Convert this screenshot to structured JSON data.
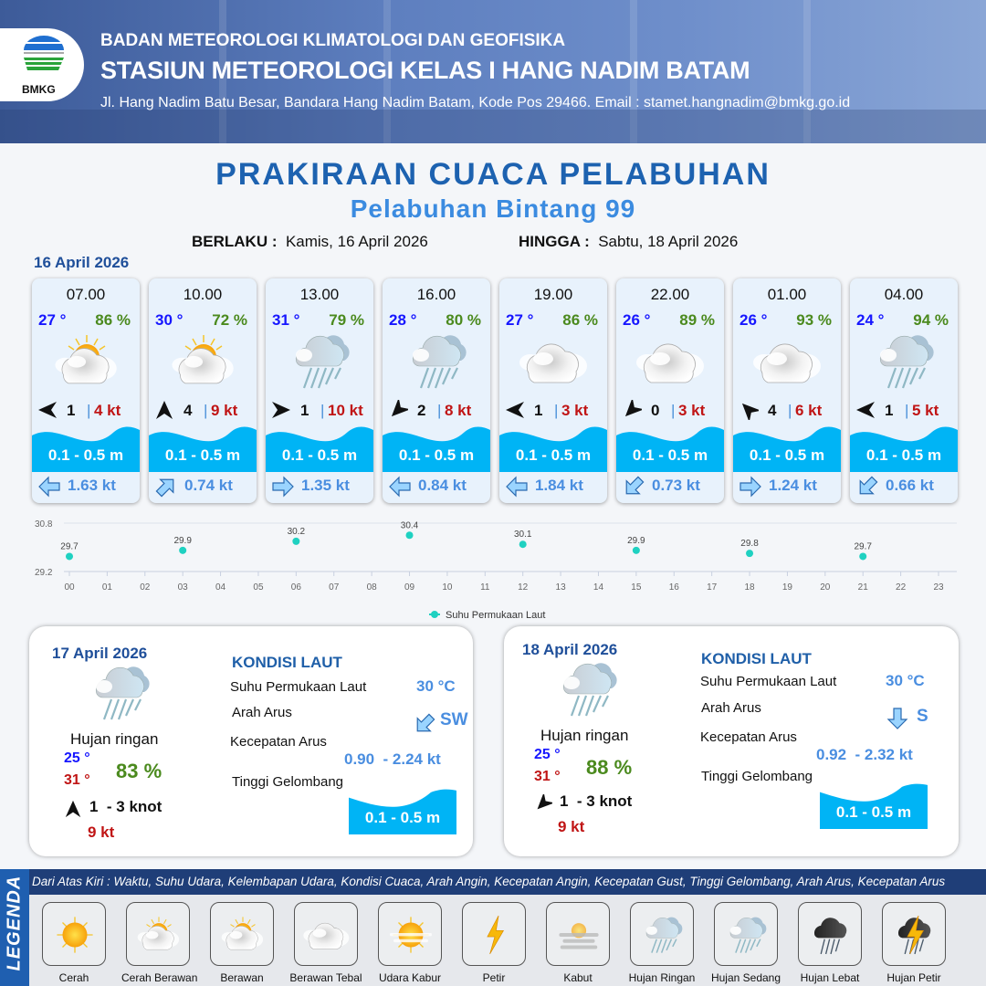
{
  "header": {
    "logo_text": "BMKG",
    "agency": "BADAN METEOROLOGI KLIMATOLOGI DAN GEOFISIKA",
    "station": "STASIUN METEOROLOGI KELAS I HANG NADIM BATAM",
    "address": "Jl. Hang Nadim Batu Besar, Bandara Hang Nadim Batam, Kode Pos 29466. Email : stamet.hangnadim@bmkg.go.id"
  },
  "title": "PRAKIRAAN CUACA PELABUHAN",
  "subtitle": "Pelabuhan Bintang 99",
  "validity": {
    "from_label": "BERLAKU :",
    "from": "Kamis, 16 April 2026",
    "to_label": "HINGGA :",
    "to": "Sabtu, 18 April 2026"
  },
  "day1": {
    "date": "16 April 2026",
    "forecasts": [
      {
        "time": "07.00",
        "temp": "27 °",
        "rh": "86 %",
        "weather": "cerah-berawan",
        "wind_dir_deg": 270,
        "wind_speed": "1",
        "gust": "4 kt",
        "wave": "0.1 - 0.5 m",
        "current_dir_deg": 270,
        "current_speed": "1.63 kt"
      },
      {
        "time": "10.00",
        "temp": "30 °",
        "rh": "72 %",
        "weather": "cerah-berawan",
        "wind_dir_deg": 0,
        "wind_speed": "4",
        "gust": "9 kt",
        "wave": "0.1 - 0.5 m",
        "current_dir_deg": 45,
        "current_speed": "0.74 kt"
      },
      {
        "time": "13.00",
        "temp": "31 °",
        "rh": "79 %",
        "weather": "hujan-ringan",
        "wind_dir_deg": 90,
        "wind_speed": "1",
        "gust": "10 kt",
        "wave": "0.1 - 0.5 m",
        "current_dir_deg": 90,
        "current_speed": "1.35 kt"
      },
      {
        "time": "16.00",
        "temp": "28 °",
        "rh": "80 %",
        "weather": "hujan-ringan",
        "wind_dir_deg": 225,
        "wind_speed": "2",
        "gust": "8 kt",
        "wave": "0.1 - 0.5 m",
        "current_dir_deg": 270,
        "current_speed": "0.84 kt"
      },
      {
        "time": "19.00",
        "temp": "27 °",
        "rh": "86 %",
        "weather": "berawan",
        "wind_dir_deg": 270,
        "wind_speed": "1",
        "gust": "3 kt",
        "wave": "0.1 - 0.5 m",
        "current_dir_deg": 270,
        "current_speed": "1.84 kt"
      },
      {
        "time": "22.00",
        "temp": "26 °",
        "rh": "89 %",
        "weather": "berawan",
        "wind_dir_deg": 225,
        "wind_speed": "0",
        "gust": "3 kt",
        "wave": "0.1 - 0.5 m",
        "current_dir_deg": 225,
        "current_speed": "0.73 kt"
      },
      {
        "time": "01.00",
        "temp": "26 °",
        "rh": "93 %",
        "weather": "berawan",
        "wind_dir_deg": 315,
        "wind_speed": "4",
        "gust": "6 kt",
        "wave": "0.1 - 0.5 m",
        "current_dir_deg": 90,
        "current_speed": "1.24 kt"
      },
      {
        "time": "04.00",
        "temp": "24 °",
        "rh": "94 %",
        "weather": "hujan-ringan",
        "wind_dir_deg": 270,
        "wind_speed": "1",
        "gust": "5 kt",
        "wave": "0.1 - 0.5 m",
        "current_dir_deg": 225,
        "current_speed": "0.66 kt"
      }
    ]
  },
  "chart_data": {
    "type": "scatter",
    "x": [
      "00",
      "03",
      "06",
      "09",
      "12",
      "15",
      "18",
      "21"
    ],
    "values": [
      29.7,
      29.9,
      30.2,
      30.4,
      30.1,
      29.9,
      29.8,
      29.7
    ],
    "x_ticks": [
      "00",
      "01",
      "02",
      "03",
      "04",
      "05",
      "06",
      "07",
      "08",
      "09",
      "10",
      "11",
      "12",
      "13",
      "14",
      "15",
      "16",
      "17",
      "18",
      "19",
      "20",
      "21",
      "22",
      "23"
    ],
    "y_ticks": [
      "29.2",
      "30.8"
    ],
    "ylim": [
      29.2,
      30.8
    ],
    "series": [
      {
        "name": "Suhu Permukaan Laut",
        "values": [
          29.7,
          29.9,
          30.2,
          30.4,
          30.1,
          29.9,
          29.8,
          29.7
        ]
      }
    ],
    "legend": "bottom",
    "color": "#1fd1c1",
    "grid": true
  },
  "panels": [
    {
      "date": "17 April 2026",
      "weather": "hujan-ringan",
      "weather_label": "Hujan ringan",
      "tmin": "25 °",
      "tmax": "31 °",
      "rh": "83 %",
      "wind_dir_deg": 0,
      "wind": "1  - 3 knot",
      "gust": "9 kt",
      "sea_title": "KONDISI LAUT",
      "sst_label": "Suhu Permukaan Laut",
      "sst": "30 °C",
      "cur_dir_label": "Arah Arus",
      "cur_dir": "SW",
      "cur_dir_deg": 225,
      "cur_speed_label": "Kecepatan Arus",
      "cur_speed": "0.90  - 2.24 kt",
      "wave_label": "Tinggi Gelombang",
      "wave": "0.1 - 0.5 m"
    },
    {
      "date": "18 April 2026",
      "weather": "hujan-ringan",
      "weather_label": "Hujan ringan",
      "tmin": "25 °",
      "tmax": "31 °",
      "rh": "88 %",
      "wind_dir_deg": 225,
      "wind": "1  - 3 knot",
      "gust": "9 kt",
      "sea_title": "KONDISI LAUT",
      "sst_label": "Suhu Permukaan Laut",
      "sst": "30 °C",
      "cur_dir_label": "Arah Arus",
      "cur_dir": "S",
      "cur_dir_deg": 180,
      "cur_speed_label": "Kecepatan Arus",
      "cur_speed": "0.92  - 2.32 kt",
      "wave_label": "Tinggi Gelombang",
      "wave": "0.1 - 0.5 m"
    }
  ],
  "legend": {
    "side_label": "LEGENDA",
    "description": "Dari Atas Kiri : Waktu, Suhu Udara, Kelembapan Udara, Kondisi Cuaca, Arah Angin, Kecepatan Angin, Kecepatan Gust, Tinggi Gelombang, Arah Arus, Kecepatan Arus",
    "items": [
      {
        "label": "Cerah",
        "icon": "cerah"
      },
      {
        "label": "Cerah Berawan",
        "icon": "cerah-berawan"
      },
      {
        "label": "Berawan",
        "icon": "berawan-sun"
      },
      {
        "label": "Berawan Tebal",
        "icon": "berawan"
      },
      {
        "label": "Udara Kabur",
        "icon": "udara-kabur"
      },
      {
        "label": "Petir",
        "icon": "petir"
      },
      {
        "label": "Kabut",
        "icon": "kabut"
      },
      {
        "label": "Hujan Ringan",
        "icon": "hujan-ringan"
      },
      {
        "label": "Hujan Sedang",
        "icon": "hujan-sedang"
      },
      {
        "label": "Hujan Lebat",
        "icon": "hujan-lebat"
      },
      {
        "label": "Hujan Petir",
        "icon": "hujan-petir"
      }
    ]
  },
  "colors": {
    "title": "#1d62b0",
    "temp": "#1616ff",
    "rh": "#4b8a1e",
    "gust": "#c01515",
    "wave": "#00b4f5",
    "current": "#4a8ee0"
  }
}
